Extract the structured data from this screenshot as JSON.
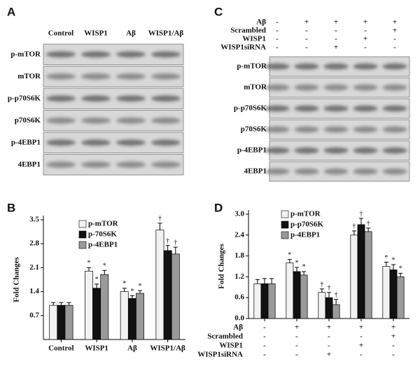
{
  "panels": {
    "A": {
      "label": "A",
      "lanes": [
        "Control",
        "WISP1",
        "Aβ",
        "WISP1/Aβ"
      ],
      "blots": [
        "p-mTOR",
        "mTOR",
        "p-p70S6K",
        "p70S6K",
        "p-4EBP1",
        "4EBP1"
      ]
    },
    "C": {
      "label": "C",
      "conditions": [
        {
          "name": "Aβ",
          "signs": [
            "-",
            "+",
            "+",
            "+",
            "+"
          ]
        },
        {
          "name": "Scrambled",
          "signs": [
            "-",
            "-",
            "-",
            "-",
            "+"
          ]
        },
        {
          "name": "WISP1",
          "signs": [
            "-",
            "-",
            "-",
            "+",
            "-"
          ]
        },
        {
          "name": "WISP1siRNA",
          "signs": [
            "-",
            "-",
            "+",
            "-",
            "-"
          ]
        }
      ],
      "blots": [
        "p-mTOR",
        "mTOR",
        "p-p70S6K",
        "p70S6K",
        "p-4EBP1",
        "4EBP1"
      ]
    }
  },
  "chart_data": [
    {
      "type": "bar",
      "panel": "B",
      "ylabel": "Fold Changes",
      "categories": [
        "Control",
        "WISP1",
        "Aβ",
        "WISP1/Aβ"
      ],
      "series": [
        {
          "name": "p-mTOR",
          "color": "#f2f2f2",
          "values": [
            1.0,
            2.0,
            1.4,
            3.2
          ],
          "errors": [
            0.08,
            0.1,
            0.1,
            0.2
          ],
          "markers": [
            null,
            "*",
            "*",
            "†"
          ]
        },
        {
          "name": "p-70S6K",
          "color": "#111111",
          "values": [
            1.0,
            1.5,
            1.2,
            2.6
          ],
          "errors": [
            0.08,
            0.12,
            0.08,
            0.15
          ],
          "markers": [
            null,
            "*",
            "*",
            "†"
          ]
        },
        {
          "name": "p-4EBP1",
          "color": "#9a9a9a",
          "values": [
            1.0,
            1.9,
            1.35,
            2.5
          ],
          "errors": [
            0.08,
            0.12,
            0.08,
            0.2
          ],
          "markers": [
            null,
            "*",
            "*",
            "†"
          ]
        }
      ],
      "ylim": [
        0,
        3.5
      ],
      "yticks": [
        0.7,
        1.4,
        2.1,
        2.8,
        3.5
      ],
      "legend": "upper left"
    },
    {
      "type": "bar",
      "panel": "D",
      "ylabel": "Fold Changes",
      "categories": [
        null,
        null,
        null,
        null,
        null
      ],
      "conditions": [
        {
          "name": "Aβ",
          "signs": [
            "-",
            "+",
            "+",
            "+",
            "+"
          ]
        },
        {
          "name": "Scrambled",
          "signs": [
            "-",
            "-",
            "-",
            "-",
            "+"
          ]
        },
        {
          "name": "WISP1",
          "signs": [
            "-",
            "-",
            "-",
            "+",
            "-"
          ]
        },
        {
          "name": "WISP1siRNA",
          "signs": [
            "-",
            "-",
            "+",
            "-",
            "-"
          ]
        }
      ],
      "series": [
        {
          "name": "p-mTOR",
          "color": "#f2f2f2",
          "values": [
            1.0,
            1.6,
            0.75,
            2.4,
            1.5
          ],
          "errors": [
            0.12,
            0.1,
            0.1,
            0.12,
            0.12
          ],
          "markers": [
            null,
            "*",
            "†",
            "†",
            "*"
          ]
        },
        {
          "name": "p-p70S6K",
          "color": "#111111",
          "values": [
            1.0,
            1.35,
            0.6,
            2.7,
            1.4
          ],
          "errors": [
            0.15,
            0.12,
            0.15,
            0.18,
            0.15
          ],
          "markers": [
            null,
            "*",
            "†",
            "†",
            "*"
          ]
        },
        {
          "name": "p-4EBP1",
          "color": "#9a9a9a",
          "values": [
            1.0,
            1.25,
            0.4,
            2.5,
            1.2
          ],
          "errors": [
            0.15,
            0.1,
            0.15,
            0.1,
            0.1
          ],
          "markers": [
            null,
            "*",
            "†",
            "†",
            "*"
          ]
        }
      ],
      "ylim": [
        0,
        3
      ],
      "yticks": [
        {
          "value": 0,
          "label": "0.0"
        },
        0.6,
        1.2,
        1.8,
        2.4,
        {
          "value": 3,
          "label": "3.0"
        }
      ],
      "legend": "upper left"
    }
  ]
}
